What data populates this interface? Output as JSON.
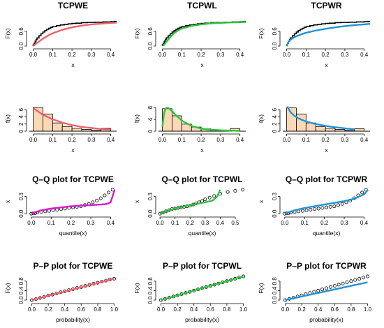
{
  "figure": {
    "rows": [
      "cdf",
      "hist",
      "qq",
      "pp"
    ],
    "columns": [
      "TCPWE",
      "TCPWL",
      "TCPWR"
    ]
  },
  "chart_data": [
    {
      "type": "line",
      "row": "cdf",
      "col": 0,
      "title": "TCPWE",
      "xlabel": "x",
      "ylabel": "F(x)",
      "xlim": [
        -0.02,
        0.43
      ],
      "ylim": [
        0,
        1.02
      ],
      "xticks": [
        0.0,
        0.1,
        0.2,
        0.3,
        0.4
      ],
      "yticks": [
        0.0,
        0.6
      ],
      "color": "#f0606e",
      "empirical_x": [
        0.0,
        0.005,
        0.01,
        0.015,
        0.02,
        0.03,
        0.04,
        0.05,
        0.06,
        0.07,
        0.08,
        0.09,
        0.1,
        0.12,
        0.14,
        0.16,
        0.18,
        0.2,
        0.22,
        0.25,
        0.28,
        0.32,
        0.36,
        0.4,
        0.42
      ],
      "empirical_y": [
        0.05,
        0.12,
        0.2,
        0.27,
        0.33,
        0.42,
        0.5,
        0.57,
        0.63,
        0.68,
        0.72,
        0.76,
        0.79,
        0.83,
        0.86,
        0.88,
        0.9,
        0.92,
        0.93,
        0.95,
        0.96,
        0.97,
        0.98,
        0.99,
        1.0
      ],
      "fitted_x": [
        0,
        0.02,
        0.05,
        0.08,
        0.1,
        0.15,
        0.2,
        0.25,
        0.3,
        0.35,
        0.4,
        0.43
      ],
      "fitted_y": [
        0,
        0.13,
        0.3,
        0.44,
        0.52,
        0.66,
        0.76,
        0.83,
        0.88,
        0.91,
        0.94,
        0.95
      ]
    },
    {
      "type": "line",
      "row": "cdf",
      "col": 1,
      "title": "TCPWL",
      "xlabel": "x",
      "ylabel": "F(x)",
      "xlim": [
        -0.02,
        0.43
      ],
      "ylim": [
        0,
        1.02
      ],
      "xticks": [
        0.0,
        0.1,
        0.2,
        0.3,
        0.4
      ],
      "yticks": [
        0.0,
        0.6
      ],
      "color": "#2ec43c",
      "empirical_x": [
        0.0,
        0.005,
        0.01,
        0.015,
        0.02,
        0.03,
        0.04,
        0.05,
        0.06,
        0.07,
        0.08,
        0.09,
        0.1,
        0.12,
        0.14,
        0.16,
        0.18,
        0.2,
        0.22,
        0.25,
        0.28,
        0.32,
        0.36,
        0.4,
        0.42
      ],
      "empirical_y": [
        0.05,
        0.12,
        0.2,
        0.27,
        0.33,
        0.42,
        0.5,
        0.57,
        0.63,
        0.68,
        0.72,
        0.76,
        0.79,
        0.83,
        0.86,
        0.88,
        0.9,
        0.92,
        0.93,
        0.95,
        0.96,
        0.97,
        0.98,
        0.99,
        1.0
      ],
      "fitted_x": [
        0,
        0.01,
        0.02,
        0.04,
        0.06,
        0.08,
        0.1,
        0.15,
        0.2,
        0.25,
        0.3,
        0.35,
        0.4,
        0.43
      ],
      "fitted_y": [
        0,
        0.06,
        0.16,
        0.36,
        0.52,
        0.63,
        0.71,
        0.82,
        0.88,
        0.92,
        0.94,
        0.96,
        0.97,
        0.975
      ]
    },
    {
      "type": "line",
      "row": "cdf",
      "col": 2,
      "title": "TCPWR",
      "xlabel": "x",
      "ylabel": "F(x)",
      "xlim": [
        -0.02,
        0.43
      ],
      "ylim": [
        0,
        1.02
      ],
      "xticks": [
        0.0,
        0.1,
        0.2,
        0.3,
        0.4
      ],
      "yticks": [
        0.0,
        0.6
      ],
      "color": "#1f94d8",
      "empirical_x": [
        0.0,
        0.005,
        0.01,
        0.015,
        0.02,
        0.03,
        0.04,
        0.05,
        0.06,
        0.07,
        0.08,
        0.09,
        0.1,
        0.12,
        0.14,
        0.16,
        0.18,
        0.2,
        0.22,
        0.25,
        0.28,
        0.32,
        0.36,
        0.4,
        0.42
      ],
      "empirical_y": [
        0.05,
        0.12,
        0.2,
        0.27,
        0.33,
        0.42,
        0.5,
        0.57,
        0.63,
        0.68,
        0.72,
        0.76,
        0.79,
        0.83,
        0.86,
        0.88,
        0.9,
        0.92,
        0.93,
        0.95,
        0.96,
        0.97,
        0.98,
        0.99,
        1.0
      ],
      "fitted_x": [
        0,
        0.01,
        0.02,
        0.04,
        0.06,
        0.08,
        0.1,
        0.15,
        0.2,
        0.25,
        0.3,
        0.35,
        0.4,
        0.43
      ],
      "fitted_y": [
        0,
        0.18,
        0.26,
        0.36,
        0.43,
        0.49,
        0.54,
        0.63,
        0.7,
        0.76,
        0.81,
        0.85,
        0.88,
        0.9
      ]
    },
    {
      "type": "bar",
      "row": "hist",
      "col": 0,
      "xlabel": "x",
      "ylabel": "f(x)",
      "xlim": [
        -0.02,
        0.43
      ],
      "ylim": [
        0,
        7
      ],
      "xticks": [
        0.0,
        0.1,
        0.2,
        0.3,
        0.4
      ],
      "yticks": [
        0,
        2,
        4,
        6
      ],
      "color": "#f0606e",
      "bar_fill": "#fbd9b6",
      "bin_edges": [
        0,
        0.05,
        0.1,
        0.15,
        0.2,
        0.25,
        0.3,
        0.35,
        0.4
      ],
      "densities": [
        6.6,
        4.8,
        2.3,
        1.3,
        0.8,
        0.5,
        0.3,
        0.8
      ],
      "fitted_x": [
        0,
        0.05,
        0.1,
        0.15,
        0.2,
        0.25,
        0.3,
        0.35,
        0.4
      ],
      "fitted_y": [
        6.4,
        4.6,
        3.3,
        2.4,
        1.7,
        1.2,
        0.9,
        0.6,
        0.45
      ]
    },
    {
      "type": "bar",
      "row": "hist",
      "col": 1,
      "xlabel": "x",
      "ylabel": "f(x)",
      "xlim": [
        -0.02,
        0.43
      ],
      "ylim": [
        0,
        8.5
      ],
      "xticks": [
        0.0,
        0.1,
        0.2,
        0.3,
        0.4
      ],
      "yticks": [
        0,
        4,
        8
      ],
      "color": "#2ec43c",
      "bar_fill": "#fbd9b6",
      "bin_edges": [
        0,
        0.05,
        0.1,
        0.15,
        0.2,
        0.25,
        0.3,
        0.35,
        0.4
      ],
      "densities": [
        7.6,
        5.2,
        2.4,
        1.4,
        0.8,
        0.5,
        0.3,
        0.9
      ],
      "fitted_x": [
        0,
        0.01,
        0.02,
        0.03,
        0.05,
        0.07,
        0.1,
        0.15,
        0.2,
        0.25,
        0.3,
        0.35,
        0.4
      ],
      "fitted_y": [
        1.5,
        6.5,
        7.9,
        7.9,
        6.8,
        5.4,
        3.6,
        1.8,
        0.9,
        0.5,
        0.3,
        0.2,
        0.1
      ]
    },
    {
      "type": "bar",
      "row": "hist",
      "col": 2,
      "xlabel": "x",
      "ylabel": "f(x)",
      "xlim": [
        -0.02,
        0.43
      ],
      "ylim": [
        0,
        7
      ],
      "xticks": [
        0.0,
        0.1,
        0.2,
        0.3,
        0.4
      ],
      "yticks": [
        0,
        2,
        4,
        6
      ],
      "color": "#1f94d8",
      "bar_fill": "#fbd9b6",
      "bin_edges": [
        0,
        0.05,
        0.1,
        0.15,
        0.2,
        0.25,
        0.3,
        0.35,
        0.4
      ],
      "densities": [
        6.5,
        4.8,
        2.3,
        1.3,
        0.8,
        0.5,
        0.3,
        0.7
      ],
      "fitted_x": [
        0.003,
        0.01,
        0.02,
        0.04,
        0.06,
        0.1,
        0.15,
        0.2,
        0.25,
        0.3,
        0.35
      ],
      "fitted_y": [
        6.9,
        6.2,
        5.3,
        4.3,
        3.6,
        2.7,
        2.0,
        1.5,
        1.1,
        0.8,
        0.55
      ]
    },
    {
      "type": "scatter",
      "row": "qq",
      "col": 0,
      "title": "Q–Q plot for  TCPWE",
      "xlabel": "quantile(x)",
      "ylabel": "x",
      "xlim": [
        -0.01,
        0.43
      ],
      "ylim": [
        -0.01,
        0.43
      ],
      "xticks": [
        0.0,
        0.1,
        0.2,
        0.3,
        0.4
      ],
      "yticks": [
        0.0,
        0.3
      ],
      "color": "#d61ad0",
      "x": [
        0.0,
        0.01,
        0.02,
        0.03,
        0.05,
        0.07,
        0.09,
        0.11,
        0.13,
        0.15,
        0.17,
        0.19,
        0.21,
        0.23,
        0.25,
        0.27,
        0.29,
        0.31,
        0.33,
        0.35,
        0.37,
        0.39,
        0.41
      ],
      "y": [
        0.0,
        0.005,
        0.01,
        0.02,
        0.03,
        0.04,
        0.05,
        0.06,
        0.07,
        0.08,
        0.09,
        0.1,
        0.11,
        0.12,
        0.13,
        0.15,
        0.17,
        0.2,
        0.23,
        0.27,
        0.32,
        0.37,
        0.42
      ],
      "fitted_x": [
        0,
        0.05,
        0.1,
        0.15,
        0.2,
        0.25,
        0.3,
        0.35,
        0.38,
        0.4,
        0.42
      ],
      "fitted_y": [
        0,
        0.06,
        0.09,
        0.11,
        0.13,
        0.14,
        0.15,
        0.16,
        0.17,
        0.2,
        0.42
      ]
    },
    {
      "type": "scatter",
      "row": "qq",
      "col": 1,
      "title": "Q–Q plot for  TCPWL",
      "xlabel": "quantile(x)",
      "ylabel": "x",
      "xlim": [
        -0.01,
        0.57
      ],
      "ylim": [
        -0.01,
        0.43
      ],
      "xticks": [
        0.0,
        0.1,
        0.2,
        0.3,
        0.4,
        0.5
      ],
      "yticks": [
        0.0,
        0.3
      ],
      "color": "#2ec43c",
      "x": [
        0.0,
        0.02,
        0.04,
        0.06,
        0.08,
        0.1,
        0.12,
        0.14,
        0.16,
        0.18,
        0.2,
        0.22,
        0.24,
        0.26,
        0.28,
        0.3,
        0.33,
        0.36,
        0.4,
        0.45,
        0.5,
        0.55
      ],
      "y": [
        0.0,
        0.02,
        0.04,
        0.06,
        0.08,
        0.09,
        0.1,
        0.11,
        0.12,
        0.13,
        0.14,
        0.16,
        0.18,
        0.2,
        0.22,
        0.25,
        0.28,
        0.31,
        0.35,
        0.38,
        0.4,
        0.42
      ],
      "fitted_x": [
        0,
        0.1,
        0.2,
        0.3,
        0.35,
        0.38,
        0.4
      ],
      "fitted_y": [
        0,
        0.09,
        0.15,
        0.2,
        0.23,
        0.3,
        0.42
      ]
    },
    {
      "type": "scatter",
      "row": "qq",
      "col": 2,
      "title": "Q–Q plot for  TCPWR",
      "xlabel": "quantile(x)",
      "ylabel": "x",
      "xlim": [
        -0.01,
        0.43
      ],
      "ylim": [
        -0.01,
        0.43
      ],
      "xticks": [
        0.0,
        0.1,
        0.2,
        0.3,
        0.4
      ],
      "yticks": [
        0.0,
        0.3
      ],
      "color": "#1f94d8",
      "x": [
        0.0,
        0.01,
        0.02,
        0.03,
        0.05,
        0.07,
        0.09,
        0.11,
        0.13,
        0.15,
        0.17,
        0.19,
        0.21,
        0.23,
        0.25,
        0.27,
        0.29,
        0.31,
        0.33,
        0.35,
        0.37,
        0.39,
        0.41
      ],
      "y": [
        0.0,
        0.005,
        0.01,
        0.02,
        0.03,
        0.04,
        0.05,
        0.06,
        0.07,
        0.08,
        0.09,
        0.1,
        0.11,
        0.12,
        0.13,
        0.15,
        0.17,
        0.2,
        0.23,
        0.27,
        0.32,
        0.37,
        0.42
      ],
      "fitted_x": [
        0,
        0.05,
        0.1,
        0.15,
        0.2,
        0.25,
        0.3,
        0.35,
        0.4,
        0.42
      ],
      "fitted_y": [
        0,
        0.06,
        0.1,
        0.13,
        0.16,
        0.19,
        0.22,
        0.26,
        0.34,
        0.42
      ]
    },
    {
      "type": "scatter",
      "row": "pp",
      "col": 0,
      "title": "P–P plot for  TCPWE",
      "xlabel": "probability(x)",
      "ylabel": "F(x)",
      "xlim": [
        -0.03,
        1.03
      ],
      "ylim": [
        -0.03,
        1.03
      ],
      "xticks": [
        0.0,
        0.2,
        0.4,
        0.6,
        0.8,
        1.0
      ],
      "yticks": [
        0.0,
        0.4,
        0.8
      ],
      "color": "#f0606e",
      "x": [
        0.0,
        0.05,
        0.1,
        0.15,
        0.2,
        0.25,
        0.3,
        0.35,
        0.4,
        0.45,
        0.5,
        0.55,
        0.6,
        0.65,
        0.7,
        0.75,
        0.8,
        0.85,
        0.9,
        0.95,
        1.0
      ],
      "y": [
        0.0,
        0.04,
        0.09,
        0.14,
        0.19,
        0.23,
        0.28,
        0.33,
        0.37,
        0.42,
        0.46,
        0.51,
        0.55,
        0.6,
        0.64,
        0.69,
        0.73,
        0.78,
        0.82,
        0.87,
        0.9
      ],
      "fitted_x": [
        0,
        1
      ],
      "fitted_y": [
        0,
        0.9
      ]
    },
    {
      "type": "scatter",
      "row": "pp",
      "col": 1,
      "title": "P–P plot for  TCPWL",
      "xlabel": "probability(x)",
      "ylabel": "F(x)",
      "xlim": [
        -0.03,
        1.03
      ],
      "ylim": [
        -0.03,
        1.03
      ],
      "xticks": [
        0.0,
        0.2,
        0.4,
        0.6,
        0.8,
        1.0
      ],
      "yticks": [
        0.0,
        0.4,
        0.8
      ],
      "color": "#2ec43c",
      "x": [
        0.0,
        0.05,
        0.1,
        0.15,
        0.2,
        0.25,
        0.3,
        0.35,
        0.4,
        0.45,
        0.5,
        0.55,
        0.6,
        0.65,
        0.7,
        0.75,
        0.8,
        0.85,
        0.9,
        0.95,
        1.0
      ],
      "y": [
        0.0,
        0.05,
        0.1,
        0.15,
        0.2,
        0.25,
        0.3,
        0.35,
        0.4,
        0.45,
        0.5,
        0.55,
        0.6,
        0.65,
        0.7,
        0.75,
        0.8,
        0.85,
        0.9,
        0.95,
        1.0
      ],
      "fitted_x": [
        0,
        1
      ],
      "fitted_y": [
        0,
        1.0
      ]
    },
    {
      "type": "scatter",
      "row": "pp",
      "col": 2,
      "title": "P–P plot for  TCPWR",
      "xlabel": "probability(x)",
      "ylabel": "F(x)",
      "xlim": [
        -0.03,
        1.03
      ],
      "ylim": [
        -0.03,
        1.03
      ],
      "xticks": [
        0.0,
        0.2,
        0.4,
        0.6,
        0.8,
        1.0
      ],
      "yticks": [
        0.0,
        0.4,
        0.8
      ],
      "color": "#1f94d8",
      "x": [
        0.0,
        0.05,
        0.1,
        0.15,
        0.2,
        0.25,
        0.3,
        0.35,
        0.4,
        0.45,
        0.5,
        0.55,
        0.6,
        0.65,
        0.7,
        0.75,
        0.8,
        0.85,
        0.9,
        0.95,
        1.0
      ],
      "y": [
        0.0,
        0.05,
        0.1,
        0.15,
        0.2,
        0.25,
        0.3,
        0.35,
        0.4,
        0.45,
        0.5,
        0.55,
        0.6,
        0.65,
        0.7,
        0.75,
        0.8,
        0.85,
        0.9,
        0.95,
        1.0
      ],
      "fitted_x": [
        0,
        1
      ],
      "fitted_y": [
        0,
        0.75
      ]
    }
  ]
}
